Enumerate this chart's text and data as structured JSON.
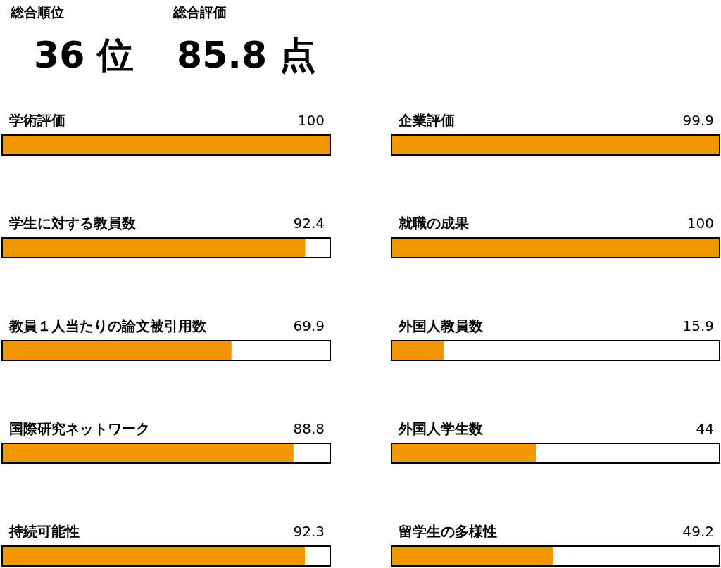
{
  "chart_data": [
    {
      "type": "other",
      "annotations": [
        "総合順位",
        "36 位",
        "総合評価",
        "85.8 点"
      ]
    },
    {
      "type": "bar",
      "orientation": "horizontal",
      "categories": [
        "学術評価",
        "学生に対する教員数",
        "教員１人当たりの論文被引用数",
        "国際研究ネットワーク",
        "持続可能性"
      ],
      "values": [
        100,
        92.4,
        69.9,
        88.8,
        92.3
      ],
      "color": "#f29600",
      "xlim": [
        0,
        100
      ],
      "data_labels": true,
      "tick_labels": "y"
    },
    {
      "type": "bar",
      "orientation": "horizontal",
      "categories": [
        "企業評価",
        "就職の成果",
        "外国人教員数",
        "外国人学生数",
        "留学生の多様性"
      ],
      "values": [
        99.9,
        100,
        15.9,
        44,
        49.2
      ],
      "color": "#f29600",
      "xlim": [
        0,
        100
      ],
      "data_labels": true,
      "tick_labels": "y"
    }
  ]
}
